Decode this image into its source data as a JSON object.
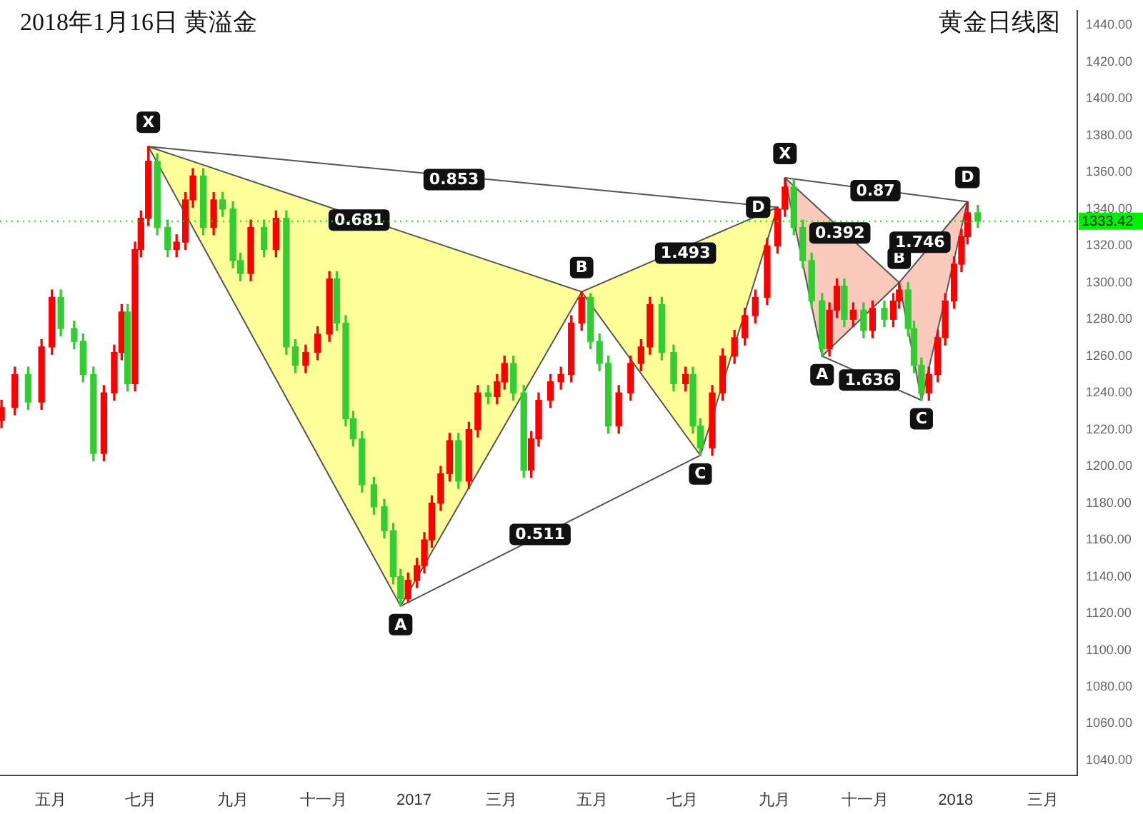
{
  "chart_data": {
    "type": "candlestick",
    "title": "2018年1月16日  黄溢金",
    "subtitle": "黄金日线图",
    "x": [
      "2016-03-29",
      "2016-04-07",
      "2016-04-16",
      "2016-04-25",
      "2016-05-02",
      "2016-05-08",
      "2016-05-17",
      "2016-05-23",
      "2016-05-30",
      "2016-06-06",
      "2016-06-13",
      "2016-06-18",
      "2016-06-22",
      "2016-06-27",
      "2016-07-01",
      "2016-07-06",
      "2016-07-12",
      "2016-07-19",
      "2016-07-25",
      "2016-07-31",
      "2016-08-05",
      "2016-08-12",
      "2016-08-19",
      "2016-08-25",
      "2016-09-01",
      "2016-09-06",
      "2016-09-13",
      "2016-09-22",
      "2016-09-30",
      "2016-10-07",
      "2016-10-13",
      "2016-10-20",
      "2016-10-28",
      "2016-11-05",
      "2016-11-10",
      "2016-11-16",
      "2016-11-21",
      "2016-11-27",
      "2016-12-05",
      "2016-12-12",
      "2016-12-18",
      "2016-12-23",
      "2016-12-28",
      "2017-01-03",
      "2017-01-08",
      "2017-01-13",
      "2017-01-19",
      "2017-01-25",
      "2017-01-31",
      "2017-02-07",
      "2017-02-13",
      "2017-02-20",
      "2017-02-26",
      "2017-03-03",
      "2017-03-09",
      "2017-03-16",
      "2017-03-21",
      "2017-03-26",
      "2017-04-03",
      "2017-04-10",
      "2017-04-17",
      "2017-04-24",
      "2017-04-30",
      "2017-05-06",
      "2017-05-12",
      "2017-05-19",
      "2017-05-27",
      "2017-06-03",
      "2017-06-09",
      "2017-06-17",
      "2017-06-25",
      "2017-07-03",
      "2017-07-08",
      "2017-07-13",
      "2017-07-21",
      "2017-07-28",
      "2017-08-05",
      "2017-08-12",
      "2017-08-19",
      "2017-08-27",
      "2017-09-03",
      "2017-09-08",
      "2017-09-14",
      "2017-09-20",
      "2017-09-26",
      "2017-10-03",
      "2017-10-08",
      "2017-10-13",
      "2017-10-18",
      "2017-10-24",
      "2017-10-31",
      "2017-11-06",
      "2017-11-14",
      "2017-11-20",
      "2017-11-24",
      "2017-11-30",
      "2017-12-04",
      "2017-12-09",
      "2017-12-14",
      "2017-12-20",
      "2017-12-25",
      "2017-12-31",
      "2018-01-05",
      "2018-01-09",
      "2018-01-16"
    ],
    "ohlc": [
      [
        1225,
        1236,
        1221,
        1232
      ],
      [
        1232,
        1254,
        1228,
        1250
      ],
      [
        1250,
        1254,
        1231,
        1235
      ],
      [
        1235,
        1269,
        1231,
        1265
      ],
      [
        1265,
        1296,
        1261,
        1292
      ],
      [
        1292,
        1296,
        1271,
        1275
      ],
      [
        1275,
        1279,
        1264,
        1268
      ],
      [
        1268,
        1272,
        1246,
        1250
      ],
      [
        1250,
        1254,
        1203,
        1207
      ],
      [
        1207,
        1244,
        1203,
        1240
      ],
      [
        1240,
        1266,
        1236,
        1262
      ],
      [
        1262,
        1288,
        1258,
        1284
      ],
      [
        1284,
        1288,
        1241,
        1245
      ],
      [
        1245,
        1322,
        1241,
        1318
      ],
      [
        1318,
        1339,
        1314,
        1335
      ],
      [
        1335,
        1374,
        1331,
        1366
      ],
      [
        1366,
        1370,
        1326,
        1330
      ],
      [
        1330,
        1334,
        1314,
        1318
      ],
      [
        1318,
        1326,
        1314,
        1322
      ],
      [
        1322,
        1349,
        1318,
        1345
      ],
      [
        1345,
        1362,
        1341,
        1358
      ],
      [
        1358,
        1362,
        1326,
        1330
      ],
      [
        1330,
        1349,
        1326,
        1345
      ],
      [
        1345,
        1349,
        1336,
        1340
      ],
      [
        1340,
        1344,
        1308,
        1312
      ],
      [
        1312,
        1316,
        1301,
        1305
      ],
      [
        1305,
        1334,
        1301,
        1330
      ],
      [
        1330,
        1334,
        1314,
        1318
      ],
      [
        1318,
        1339,
        1314,
        1335
      ],
      [
        1335,
        1339,
        1261,
        1265
      ],
      [
        1265,
        1269,
        1251,
        1255
      ],
      [
        1255,
        1266,
        1251,
        1262
      ],
      [
        1262,
        1276,
        1258,
        1272
      ],
      [
        1272,
        1306,
        1268,
        1302
      ],
      [
        1302,
        1306,
        1274,
        1278
      ],
      [
        1278,
        1282,
        1222,
        1226
      ],
      [
        1226,
        1230,
        1211,
        1215
      ],
      [
        1215,
        1219,
        1186,
        1190
      ],
      [
        1190,
        1194,
        1174,
        1178
      ],
      [
        1178,
        1182,
        1161,
        1165
      ],
      [
        1165,
        1169,
        1136,
        1140
      ],
      [
        1140,
        1144,
        1124,
        1128
      ],
      [
        1128,
        1142,
        1126,
        1138
      ],
      [
        1138,
        1150,
        1134,
        1146
      ],
      [
        1146,
        1164,
        1142,
        1160
      ],
      [
        1160,
        1184,
        1156,
        1180
      ],
      [
        1180,
        1200,
        1176,
        1196
      ],
      [
        1196,
        1218,
        1192,
        1214
      ],
      [
        1214,
        1218,
        1188,
        1192
      ],
      [
        1192,
        1224,
        1188,
        1220
      ],
      [
        1220,
        1244,
        1216,
        1240
      ],
      [
        1240,
        1244,
        1234,
        1238
      ],
      [
        1238,
        1250,
        1234,
        1246
      ],
      [
        1246,
        1260,
        1242,
        1256
      ],
      [
        1256,
        1260,
        1236,
        1240
      ],
      [
        1240,
        1244,
        1194,
        1198
      ],
      [
        1198,
        1219,
        1194,
        1215
      ],
      [
        1215,
        1240,
        1211,
        1236
      ],
      [
        1236,
        1250,
        1232,
        1246
      ],
      [
        1246,
        1254,
        1242,
        1250
      ],
      [
        1250,
        1282,
        1246,
        1278
      ],
      [
        1278,
        1295,
        1274,
        1292
      ],
      [
        1292,
        1294,
        1264,
        1268
      ],
      [
        1268,
        1272,
        1252,
        1256
      ],
      [
        1256,
        1260,
        1218,
        1222
      ],
      [
        1222,
        1244,
        1218,
        1240
      ],
      [
        1240,
        1260,
        1236,
        1256
      ],
      [
        1256,
        1269,
        1252,
        1265
      ],
      [
        1265,
        1292,
        1261,
        1288
      ],
      [
        1288,
        1292,
        1258,
        1262
      ],
      [
        1262,
        1266,
        1241,
        1245
      ],
      [
        1245,
        1254,
        1241,
        1250
      ],
      [
        1250,
        1254,
        1218,
        1222
      ],
      [
        1222,
        1226,
        1206,
        1210
      ],
      [
        1210,
        1244,
        1206,
        1240
      ],
      [
        1240,
        1264,
        1236,
        1260
      ],
      [
        1260,
        1274,
        1256,
        1270
      ],
      [
        1270,
        1286,
        1266,
        1282
      ],
      [
        1282,
        1296,
        1278,
        1292
      ],
      [
        1292,
        1324,
        1288,
        1320
      ],
      [
        1320,
        1341,
        1316,
        1340
      ],
      [
        1340,
        1357,
        1336,
        1352
      ],
      [
        1352,
        1356,
        1326,
        1330
      ],
      [
        1330,
        1334,
        1308,
        1312
      ],
      [
        1312,
        1316,
        1286,
        1290
      ],
      [
        1290,
        1294,
        1260,
        1264
      ],
      [
        1264,
        1289,
        1260,
        1285
      ],
      [
        1285,
        1302,
        1281,
        1298
      ],
      [
        1298,
        1302,
        1276,
        1280
      ],
      [
        1280,
        1289,
        1276,
        1285
      ],
      [
        1285,
        1289,
        1270,
        1274
      ],
      [
        1274,
        1290,
        1270,
        1286
      ],
      [
        1286,
        1290,
        1276,
        1280
      ],
      [
        1280,
        1294,
        1276,
        1290
      ],
      [
        1290,
        1300,
        1286,
        1296
      ],
      [
        1296,
        1300,
        1271,
        1275
      ],
      [
        1275,
        1279,
        1251,
        1255
      ],
      [
        1255,
        1259,
        1236,
        1240
      ],
      [
        1240,
        1254,
        1236,
        1250
      ],
      [
        1250,
        1274,
        1246,
        1270
      ],
      [
        1270,
        1294,
        1266,
        1290
      ],
      [
        1290,
        1314,
        1286,
        1310
      ],
      [
        1310,
        1329,
        1306,
        1325
      ],
      [
        1325,
        1344,
        1321,
        1338
      ],
      [
        1338,
        1342,
        1330,
        1333.42
      ]
    ],
    "colors": [
      "#ff0000",
      "#ff0000",
      "#33cc33",
      "#ff0000",
      "#ff0000",
      "#33cc33",
      "#33cc33",
      "#33cc33",
      "#33cc33",
      "#ff0000",
      "#ff0000",
      "#ff0000",
      "#33cc33",
      "#ff0000",
      "#ff0000",
      "#ff0000",
      "#33cc33",
      "#33cc33",
      "#ff0000",
      "#ff0000",
      "#ff0000",
      "#33cc33",
      "#ff0000",
      "#33cc33",
      "#33cc33",
      "#33cc33",
      "#ff0000",
      "#33cc33",
      "#ff0000",
      "#33cc33",
      "#33cc33",
      "#ff0000",
      "#ff0000",
      "#ff0000",
      "#33cc33",
      "#33cc33",
      "#33cc33",
      "#33cc33",
      "#33cc33",
      "#33cc33",
      "#33cc33",
      "#33cc33",
      "#ff0000",
      "#ff0000",
      "#ff0000",
      "#ff0000",
      "#ff0000",
      "#ff0000",
      "#33cc33",
      "#ff0000",
      "#ff0000",
      "#33cc33",
      "#ff0000",
      "#ff0000",
      "#33cc33",
      "#33cc33",
      "#ff0000",
      "#ff0000",
      "#ff0000",
      "#ff0000",
      "#ff0000",
      "#ff0000",
      "#33cc33",
      "#33cc33",
      "#33cc33",
      "#ff0000",
      "#ff0000",
      "#ff0000",
      "#ff0000",
      "#33cc33",
      "#33cc33",
      "#ff0000",
      "#33cc33",
      "#33cc33",
      "#ff0000",
      "#ff0000",
      "#ff0000",
      "#ff0000",
      "#ff0000",
      "#ff0000",
      "#ff0000",
      "#ff0000",
      "#33cc33",
      "#33cc33",
      "#33cc33",
      "#33cc33",
      "#ff0000",
      "#ff0000",
      "#33cc33",
      "#ff0000",
      "#33cc33",
      "#ff0000",
      "#33cc33",
      "#ff0000",
      "#ff0000",
      "#33cc33",
      "#33cc33",
      "#33cc33",
      "#ff0000",
      "#ff0000",
      "#ff0000",
      "#ff0000",
      "#ff0000",
      "#ff0000",
      "#33cc33"
    ],
    "series": [
      {
        "type": "area",
        "color": "#ffff99",
        "x": [
          "2016-07-06",
          "2016-12-23",
          "2017-04-24",
          "2016-07-06"
        ],
        "values": [
          1374,
          1124,
          1295,
          1374
        ]
      },
      {
        "type": "area",
        "color": "#ffff99",
        "x": [
          "2017-04-24",
          "2017-07-13",
          "2017-09-03",
          "2017-04-24"
        ],
        "values": [
          1295,
          1206,
          1341,
          1295
        ]
      },
      {
        "type": "line",
        "color": "#555555",
        "x": [
          "2016-12-23",
          "2017-07-13"
        ],
        "values": [
          1124,
          1206
        ]
      },
      {
        "type": "line",
        "color": "#555555",
        "x": [
          "2016-07-06",
          "2017-09-03"
        ],
        "values": [
          1374,
          1341
        ]
      },
      {
        "type": "area",
        "color": "#f9c9bb",
        "x": [
          "2017-09-08",
          "2017-10-03",
          "2017-11-24",
          "2017-09-08"
        ],
        "values": [
          1357,
          1260,
          1300,
          1357
        ]
      },
      {
        "type": "area",
        "color": "#f9c9bb",
        "x": [
          "2017-11-24",
          "2017-12-09",
          "2018-01-09",
          "2017-11-24"
        ],
        "values": [
          1300,
          1236,
          1344,
          1300
        ]
      },
      {
        "type": "line",
        "color": "#555555",
        "x": [
          "2017-10-03",
          "2017-12-09"
        ],
        "values": [
          1260,
          1236
        ]
      },
      {
        "type": "line",
        "color": "#555555",
        "x": [
          "2017-09-08",
          "2018-01-09"
        ],
        "values": [
          1357,
          1344
        ]
      }
    ],
    "annotations": [
      {
        "text": "X",
        "x": "2016-07-06",
        "y": 1374
      },
      {
        "text": "A",
        "x": "2016-12-23",
        "y": 1124
      },
      {
        "text": "B",
        "x": "2017-04-24",
        "y": 1295
      },
      {
        "text": "C",
        "x": "2017-07-13",
        "y": 1206
      },
      {
        "text": "D",
        "x": "2017-09-03",
        "y": 1341
      },
      {
        "text": "X",
        "x": "2017-09-08",
        "y": 1357
      },
      {
        "text": "A",
        "x": "2017-10-03",
        "y": 1260
      },
      {
        "text": "B",
        "x": "2017-11-24",
        "y": 1300
      },
      {
        "text": "C",
        "x": "2017-12-09",
        "y": 1236
      },
      {
        "text": "D",
        "x": "2018-01-09",
        "y": 1344
      },
      {
        "text": "0.853",
        "x": "2017-01-28",
        "y": 1356
      },
      {
        "text": "0.681",
        "x": "2016-11-25",
        "y": 1334
      },
      {
        "text": "0.511",
        "x": "2017-03-27",
        "y": 1163
      },
      {
        "text": "1.493",
        "x": "2017-07-03",
        "y": 1316
      },
      {
        "text": "0.87",
        "x": "2017-11-08",
        "y": 1350
      },
      {
        "text": "0.392",
        "x": "2017-10-15",
        "y": 1327
      },
      {
        "text": "1.636",
        "x": "2017-11-04",
        "y": 1247
      },
      {
        "text": "1.746",
        "x": "2017-12-08",
        "y": 1322
      }
    ],
    "ref_lines": [
      {
        "axis": "y",
        "value": 1333.42,
        "label": "1333.42",
        "color": "#00ee00"
      }
    ],
    "xlim": [
      "2016-03-28",
      "2018-03-24"
    ],
    "xticks": [
      {
        "value": "2016-05-01",
        "label": "五月"
      },
      {
        "value": "2016-07-01",
        "label": "七月"
      },
      {
        "value": "2016-09-01",
        "label": "九月"
      },
      {
        "value": "2016-11-01",
        "label": "十一月"
      },
      {
        "value": "2017-01-01",
        "label": "2017"
      },
      {
        "value": "2017-03-01",
        "label": "三月"
      },
      {
        "value": "2017-05-01",
        "label": "五月"
      },
      {
        "value": "2017-07-01",
        "label": "七月"
      },
      {
        "value": "2017-09-01",
        "label": "九月"
      },
      {
        "value": "2017-11-01",
        "label": "十一月"
      },
      {
        "value": "2018-01-01",
        "label": "2018"
      },
      {
        "value": "2018-03-01",
        "label": "三月"
      }
    ],
    "ylim": [
      1032,
      1448
    ],
    "yticks": [
      {
        "value": 1040,
        "label": "1040.00"
      },
      {
        "value": 1060,
        "label": "1060.00"
      },
      {
        "value": 1080,
        "label": "1080.00"
      },
      {
        "value": 1100,
        "label": "1100.00"
      },
      {
        "value": 1120,
        "label": "1120.00"
      },
      {
        "value": 1140,
        "label": "1140.00"
      },
      {
        "value": 1160,
        "label": "1160.00"
      },
      {
        "value": 1180,
        "label": "1180.00"
      },
      {
        "value": 1200,
        "label": "1200.00"
      },
      {
        "value": 1220,
        "label": "1220.00"
      },
      {
        "value": 1240,
        "label": "1240.00"
      },
      {
        "value": 1260,
        "label": "1260.00"
      },
      {
        "value": 1280,
        "label": "1280.00"
      },
      {
        "value": 1300,
        "label": "1300.00"
      },
      {
        "value": 1320,
        "label": "1320.00"
      },
      {
        "value": 1340,
        "label": "1340.00"
      },
      {
        "value": 1360,
        "label": "1360.00"
      },
      {
        "value": 1380,
        "label": "1380.00"
      },
      {
        "value": 1400,
        "label": "1400.00"
      },
      {
        "value": 1420,
        "label": "1420.00"
      },
      {
        "value": 1440,
        "label": "1440.00"
      }
    ],
    "grid": false,
    "legend": false,
    "marker": "none"
  }
}
